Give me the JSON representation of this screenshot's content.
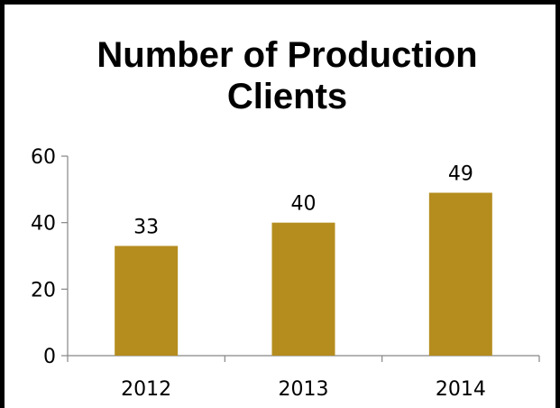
{
  "chart_data": {
    "type": "bar",
    "title_lines": [
      "Number of Production",
      "Clients"
    ],
    "categories": [
      "2012",
      "2013",
      "2014"
    ],
    "values": [
      33,
      40,
      49
    ],
    "data_labels": [
      "33",
      "40",
      "49"
    ],
    "ylim": [
      0,
      60
    ],
    "y_ticks": [
      "0",
      "20",
      "40",
      "60"
    ],
    "bar_color": "#b58d1f",
    "legend": "none",
    "grid": false
  }
}
